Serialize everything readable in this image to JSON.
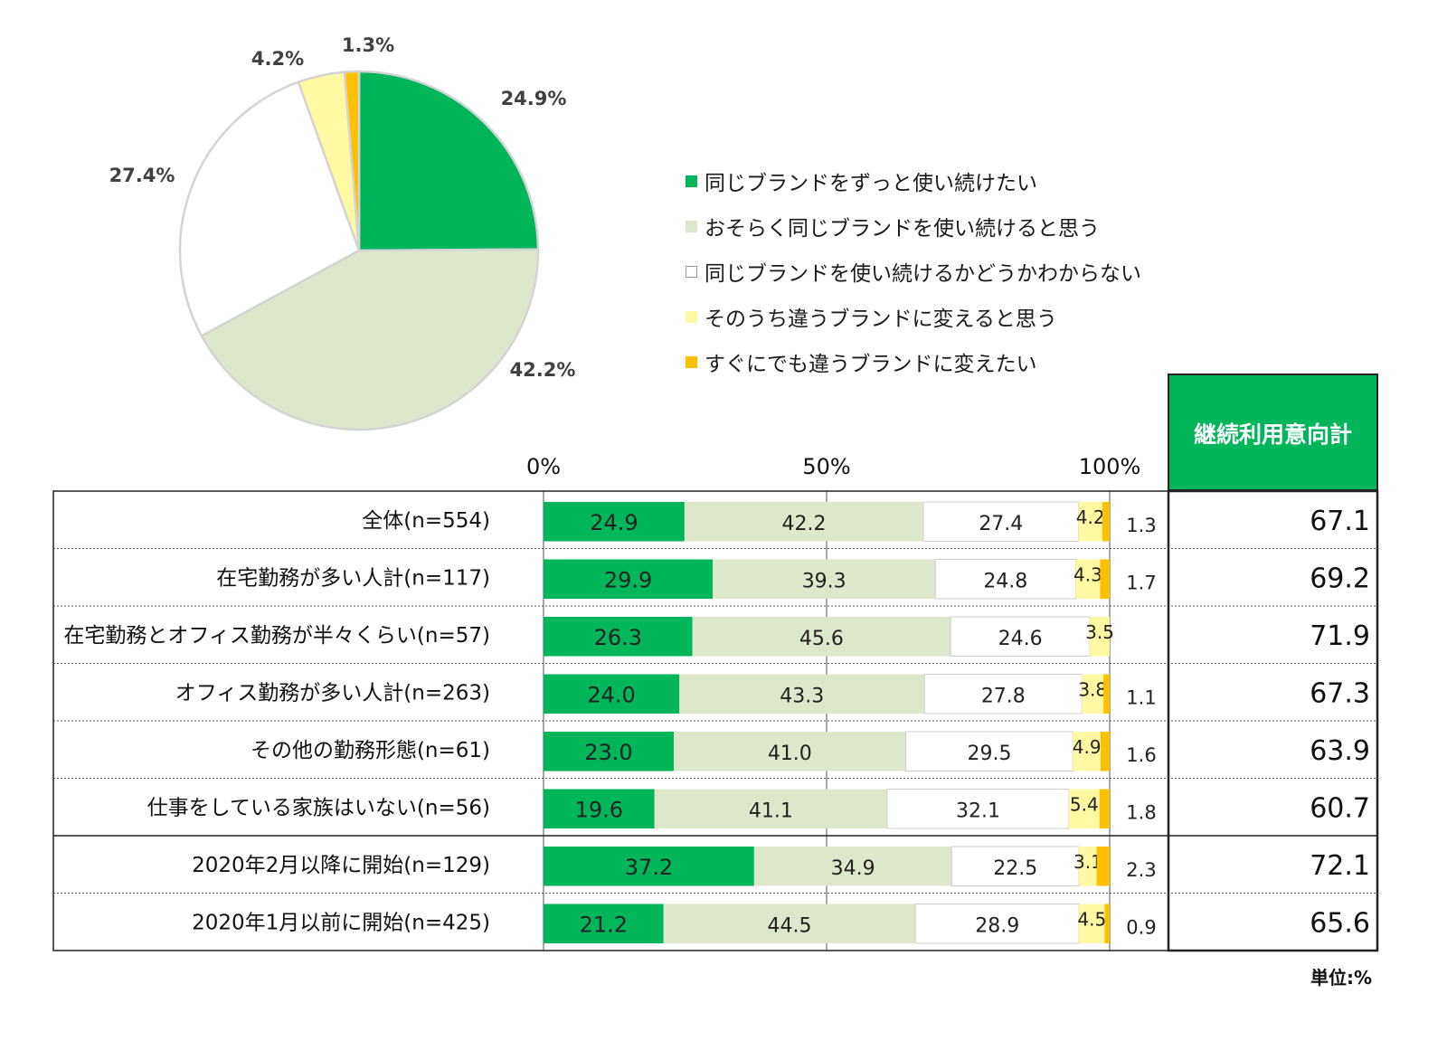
{
  "colors": {
    "cat1": "#00b55a",
    "cat2": "#dde7cb",
    "cat3": "#ffffff",
    "cat4": "#fff9a4",
    "cat5": "#ffc000",
    "total_header_bg": "#00b55a",
    "border": "#222222"
  },
  "chart_data": [
    {
      "type": "pie",
      "labels": [
        "同じブランドをずっと使い続けたい",
        "おそらく同じブランドを使い続けると思う",
        "同じブランドを使い続けるかどうかわからない",
        "そのうち違うブランドに変えると思う",
        "すぐにでも違うブランドに変えたい"
      ],
      "values": [
        24.9,
        42.2,
        27.4,
        4.2,
        1.3
      ],
      "data_labels": [
        "24.9%",
        "42.2%",
        "27.4%",
        "4.2%",
        "1.3%"
      ],
      "legend_position": "right"
    },
    {
      "type": "bar",
      "orientation": "horizontal",
      "stacked": true,
      "xlim": [
        0,
        100
      ],
      "xticks": [
        "0%",
        "50%",
        "100%"
      ],
      "categories": [
        "全体(n=554)",
        "在宅勤務が多い人計(n=117)",
        "在宅勤務とオフィス勤務が半々くらい(n=57)",
        "オフィス勤務が多い人計(n=263)",
        "その他の勤務形態(n=61)",
        "仕事をしている家族はいない(n=56)",
        "2020年2月以降に開始(n=129)",
        "2020年1月以前に開始(n=425)"
      ],
      "series": [
        {
          "name": "同じブランドをずっと使い続けたい",
          "values": [
            24.9,
            29.9,
            26.3,
            24.0,
            23.0,
            19.6,
            37.2,
            21.2
          ],
          "labels": [
            "24.9",
            "29.9",
            "26.3",
            "24.0",
            "23.0",
            "19.6",
            "37.2",
            "21.2"
          ]
        },
        {
          "name": "おそらく同じブランドを使い続けると思う",
          "values": [
            42.2,
            39.3,
            45.6,
            43.3,
            41.0,
            41.1,
            34.9,
            44.5
          ],
          "labels": [
            "42.2",
            "39.3",
            "45.6",
            "43.3",
            "41.0",
            "41.1",
            "34.9",
            "44.5"
          ]
        },
        {
          "name": "同じブランドを使い続けるかどうかわからない",
          "values": [
            27.4,
            24.8,
            24.6,
            27.8,
            29.5,
            32.1,
            22.5,
            28.9
          ],
          "labels": [
            "27.4",
            "24.8",
            "24.6",
            "27.8",
            "29.5",
            "32.1",
            "22.5",
            "28.9"
          ]
        },
        {
          "name": "そのうち違うブランドに変えると思う",
          "values": [
            4.2,
            4.3,
            3.5,
            3.8,
            4.9,
            5.4,
            3.1,
            4.5
          ],
          "labels": [
            "4.2",
            "4.3",
            "3.5",
            "3.8",
            "4.9",
            "5.4",
            "3.1",
            "4.5"
          ]
        },
        {
          "name": "すぐにでも違うブランドに変えたい",
          "values": [
            1.3,
            1.7,
            0,
            1.1,
            1.6,
            1.8,
            2.3,
            0.9
          ],
          "labels": [
            "1.3",
            "1.7",
            "",
            "1.1",
            "1.6",
            "1.8",
            "2.3",
            "0.9"
          ]
        }
      ],
      "total_column": {
        "header": "継続利用意向計",
        "values": [
          "67.1",
          "69.2",
          "71.9",
          "67.3",
          "63.9",
          "60.7",
          "72.1",
          "65.6"
        ]
      },
      "unit_note": "単位:%"
    }
  ]
}
